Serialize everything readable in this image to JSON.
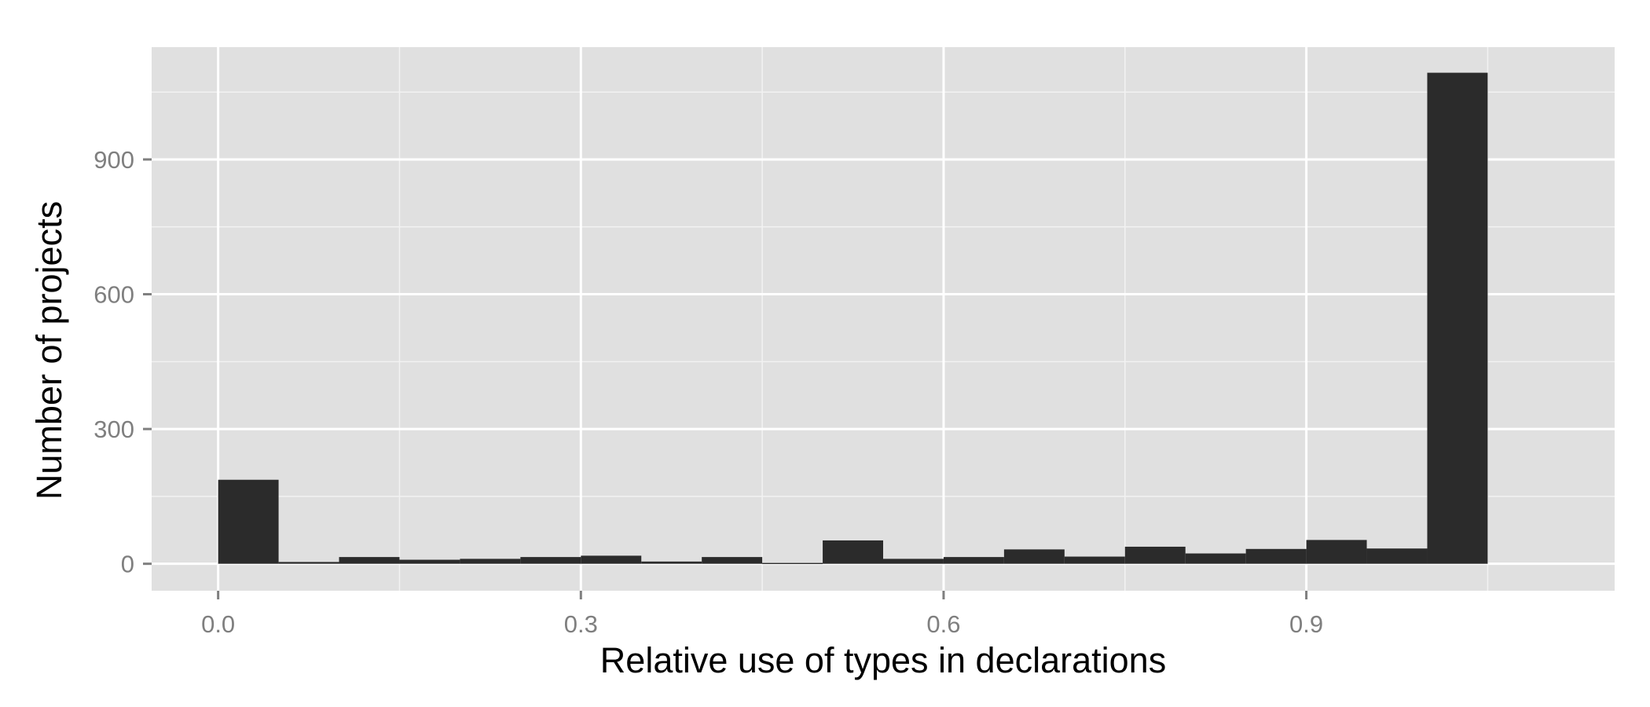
{
  "chart_data": {
    "type": "bar",
    "subtype": "histogram",
    "title": "",
    "xlabel": "Relative use of types in declarations",
    "ylabel": "Number of projects",
    "bin_width": 0.05,
    "bin_starts": [
      0.0,
      0.05,
      0.1,
      0.15,
      0.2,
      0.25,
      0.3,
      0.35,
      0.4,
      0.45,
      0.5,
      0.55,
      0.6,
      0.65,
      0.7,
      0.75,
      0.8,
      0.85,
      0.9,
      0.95,
      1.0
    ],
    "values": [
      187,
      4,
      15,
      9,
      11,
      15,
      18,
      5,
      15,
      2,
      52,
      11,
      15,
      32,
      16,
      38,
      23,
      33,
      53,
      34,
      1093
    ],
    "xlim": [
      -0.055,
      1.155
    ],
    "ylim": [
      -60,
      1150
    ],
    "x_ticks": [
      0.0,
      0.3,
      0.6,
      0.9
    ],
    "x_tick_labels": [
      "0.0",
      "0.3",
      "0.6",
      "0.9"
    ],
    "y_ticks": [
      0,
      300,
      600,
      900
    ],
    "y_tick_labels": [
      "0",
      "300",
      "600",
      "900"
    ],
    "grid": true,
    "legend": "none",
    "bar_color": "#2b2b2b",
    "panel_color": "#e0e0e0",
    "grid_color": "#ffffff"
  }
}
